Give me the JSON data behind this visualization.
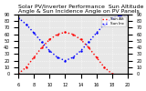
{
  "title": "Solar PV/Inverter Performance  Sun Altitude Angle & Sun Incidence Angle on PV Panels",
  "x_start": 6,
  "x_end": 20,
  "y_left_min": 0,
  "y_left_max": 90,
  "y_right_min": 0,
  "y_right_max": 90,
  "right_yticks": [
    90,
    80,
    70,
    60,
    50,
    40,
    30,
    20,
    10,
    0
  ],
  "right_yticklabels": [
    "90",
    "80",
    "70",
    "60",
    "50",
    "40",
    "30",
    "20",
    "10",
    "0"
  ],
  "xticks": [
    6,
    8,
    10,
    12,
    14,
    16,
    18,
    20
  ],
  "xticklabels": [
    "6",
    "8",
    "10",
    "12",
    "14",
    "16",
    "18",
    "20"
  ],
  "sun_altitude_x": [
    6,
    7,
    8,
    9,
    10,
    11,
    12,
    13,
    14,
    15,
    16,
    17,
    18,
    19,
    20
  ],
  "sun_altitude_y": [
    0,
    10,
    25,
    40,
    52,
    60,
    63,
    60,
    52,
    40,
    25,
    10,
    0,
    -5,
    -10
  ],
  "sun_incidence_x": [
    6,
    7,
    8,
    9,
    10,
    11,
    12,
    13,
    14,
    15,
    16,
    17,
    18,
    19,
    20
  ],
  "sun_incidence_y": [
    85,
    75,
    62,
    48,
    35,
    25,
    20,
    25,
    35,
    48,
    62,
    75,
    85,
    88,
    90
  ],
  "altitude_color": "#ff0000",
  "incidence_color": "#0000ff",
  "bg_color": "#ffffff",
  "plot_bg": "#e8e8e8",
  "grid_color": "#ffffff",
  "title_fontsize": 4.5,
  "tick_fontsize": 3.5,
  "figsize": [
    1.6,
    1.0
  ],
  "dpi": 100
}
